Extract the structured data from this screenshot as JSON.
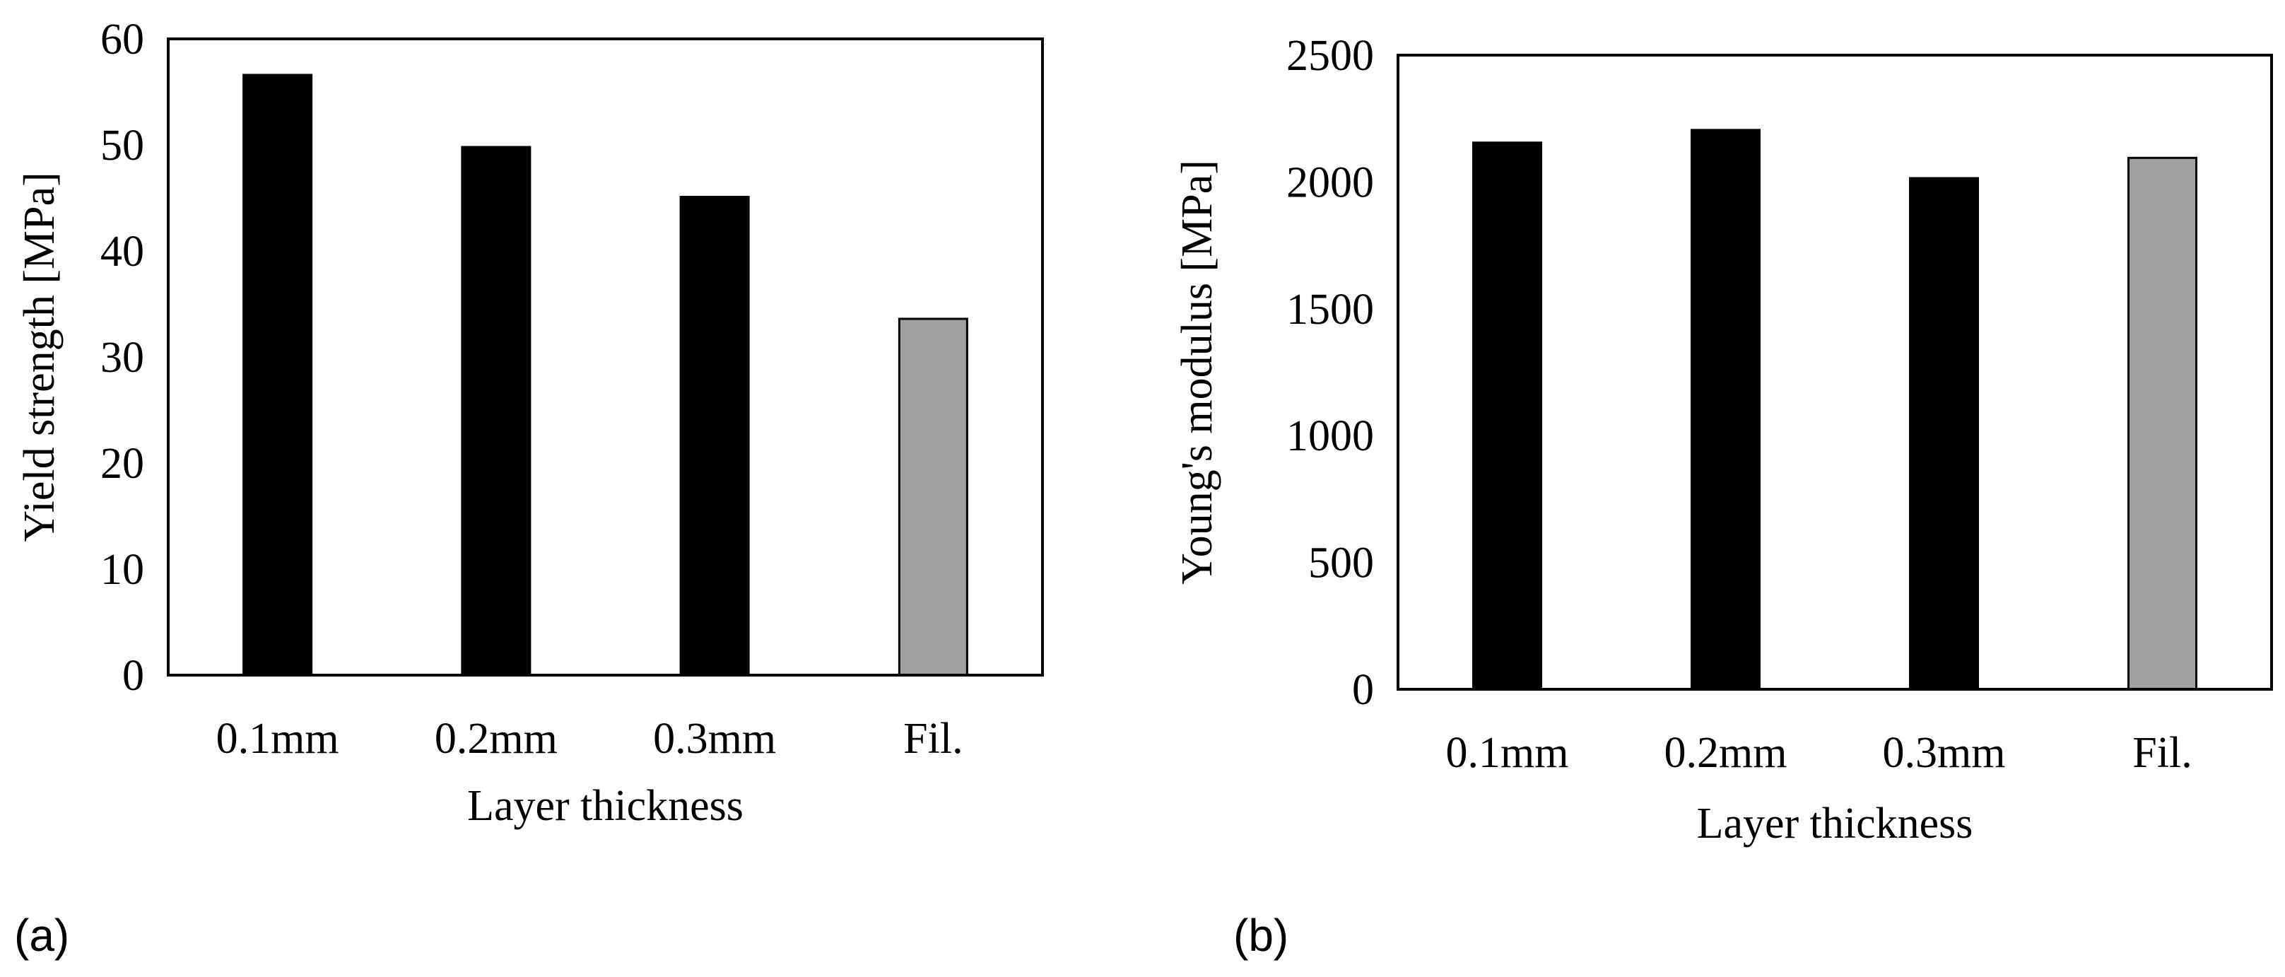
{
  "colors": {
    "experimental_bar": "#000000",
    "filament_bar": "#a0a0a0",
    "axis": "#000000"
  },
  "chart_data": [
    {
      "id": "a",
      "type": "bar",
      "panel_label": "(a)",
      "title": "",
      "xlabel": "Layer thickness",
      "ylabel": "Yield strength [MPa]",
      "categories": [
        "0.1mm",
        "0.2mm",
        "0.3mm",
        "Fil."
      ],
      "values": [
        56.6,
        49.8,
        45.1,
        33.6
      ],
      "bar_colors": [
        "#000000",
        "#000000",
        "#000000",
        "#a0a0a0"
      ],
      "ylim": [
        0,
        60
      ],
      "yticks": [
        0,
        10,
        20,
        30,
        40,
        50,
        60
      ],
      "grid": false,
      "legend": "none"
    },
    {
      "id": "b",
      "type": "bar",
      "panel_label": "(b)",
      "title": "",
      "xlabel": "Layer thickness",
      "ylabel": "Young's modulus [MPa]",
      "categories": [
        "0.1mm",
        "0.2mm",
        "0.3mm",
        "Fil."
      ],
      "values": [
        2155,
        2205,
        2015,
        2095
      ],
      "bar_colors": [
        "#000000",
        "#000000",
        "#000000",
        "#a0a0a0"
      ],
      "ylim": [
        0,
        2500
      ],
      "yticks": [
        0,
        500,
        1000,
        1500,
        2000,
        2500
      ],
      "grid": false,
      "legend": "none"
    }
  ]
}
